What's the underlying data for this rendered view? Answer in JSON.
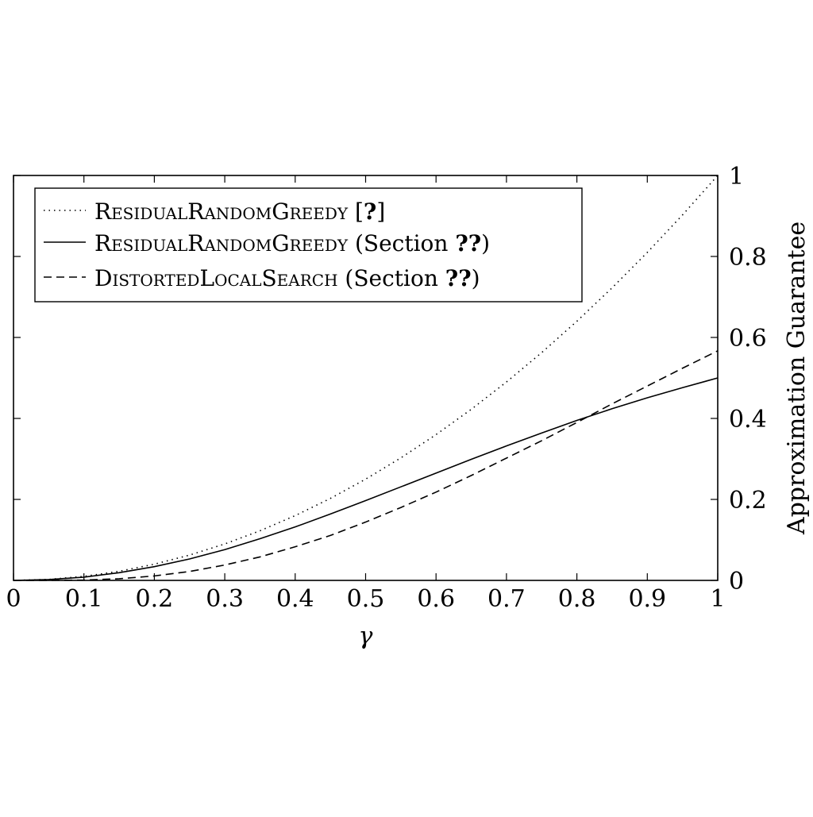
{
  "chart_data": {
    "type": "line",
    "xlabel": "γ",
    "ylabel": "Approximation Guarantee",
    "xlim": [
      0,
      1
    ],
    "ylim": [
      0,
      1
    ],
    "x_ticks": [
      0,
      0.1,
      0.2,
      0.3,
      0.4,
      0.5,
      0.6,
      0.7,
      0.8,
      0.9,
      1
    ],
    "x_tick_labels": [
      "0",
      "0.1",
      "0.2",
      "0.3",
      "0.4",
      "0.5",
      "0.6",
      "0.7",
      "0.8",
      "0.9",
      "1"
    ],
    "y_ticks": [
      0,
      0.2,
      0.4,
      0.6,
      0.8,
      1
    ],
    "y_tick_labels": [
      "0",
      "0.2",
      "0.4",
      "0.6",
      "0.8",
      "1"
    ],
    "y_axis_side": "right",
    "grid": false,
    "legend_position": "top-left",
    "x": [
      0,
      0.05,
      0.1,
      0.15,
      0.2,
      0.25,
      0.3,
      0.35,
      0.4,
      0.45,
      0.5,
      0.55,
      0.6,
      0.65,
      0.7,
      0.75,
      0.8,
      0.85,
      0.9,
      0.95,
      1
    ],
    "series": [
      {
        "legend_name": "ResidualRandomGreedy",
        "legend_suffix": " [",
        "legend_ref": "?",
        "legend_close": "]",
        "style": "dotted",
        "values": [
          0,
          0.0025,
          0.01,
          0.0225,
          0.04,
          0.0625,
          0.09,
          0.1225,
          0.16,
          0.2025,
          0.25,
          0.3025,
          0.36,
          0.4225,
          0.49,
          0.5625,
          0.64,
          0.7225,
          0.81,
          0.9025,
          1
        ]
      },
      {
        "legend_name": "ResidualRandomGreedy",
        "legend_suffix": " (Section ",
        "legend_ref": "??",
        "legend_close": ")",
        "style": "solid",
        "values": [
          0,
          0.002,
          0.008,
          0.019,
          0.034,
          0.053,
          0.076,
          0.103,
          0.132,
          0.164,
          0.197,
          0.231,
          0.265,
          0.299,
          0.332,
          0.364,
          0.395,
          0.424,
          0.451,
          0.476,
          0.5
        ]
      },
      {
        "legend_name": "DistortedLocalSearch",
        "legend_suffix": " (Section ",
        "legend_ref": "??",
        "legend_close": ")",
        "style": "dashed",
        "values": [
          0,
          0.0001,
          0.0009,
          0.004,
          0.011,
          0.022,
          0.038,
          0.058,
          0.083,
          0.111,
          0.144,
          0.18,
          0.218,
          0.259,
          0.302,
          0.345,
          0.39,
          0.436,
          0.48,
          0.524,
          0.567
        ]
      }
    ]
  }
}
